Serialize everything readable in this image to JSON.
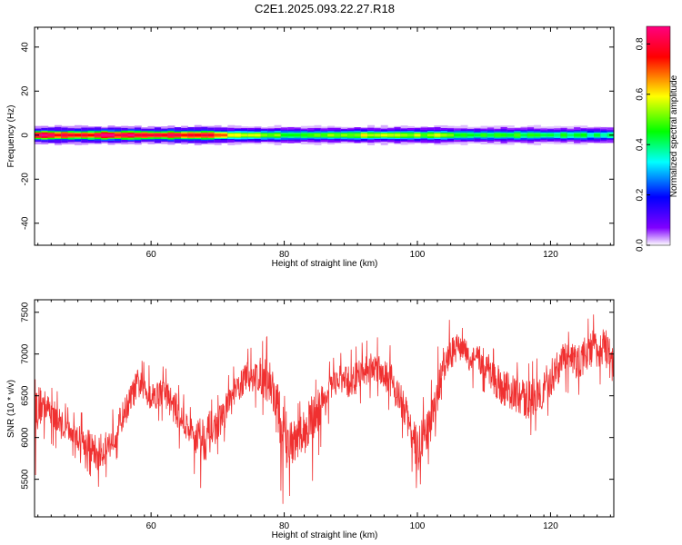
{
  "figure_title": "C2E1.2025.093.22.27.R18",
  "chart_data": [
    {
      "type": "heatmap",
      "title": "C2E1.2025.093.22.27.R18",
      "xlabel": "Height of straight line (km)",
      "ylabel": "Frequency (Hz)",
      "xlim": [
        42.5,
        129.5
      ],
      "ylim": [
        -50,
        49
      ],
      "xticks": [
        60,
        80,
        100,
        120
      ],
      "yticks": [
        -40,
        -20,
        0,
        20,
        40
      ],
      "xtick_labels": [
        "60",
        "80",
        "100",
        "120"
      ],
      "ytick_labels": [
        "-40",
        "-20",
        "0",
        "20",
        "40"
      ],
      "band_center_hz": 0,
      "band_halfwidth_hz": 4,
      "peak_amplitude_profile": {
        "x": [
          43,
          50,
          58,
          64,
          70,
          76,
          82,
          88,
          94,
          100,
          106,
          112,
          118,
          124,
          129
        ],
        "values": [
          0.85,
          0.82,
          0.86,
          0.84,
          0.7,
          0.55,
          0.45,
          0.52,
          0.58,
          0.55,
          0.5,
          0.46,
          0.44,
          0.42,
          0.4
        ]
      },
      "colorbar": {
        "label": "Normalized spectral amplitude",
        "range": [
          0.0,
          0.87
        ],
        "ticks": [
          0.0,
          0.2,
          0.4,
          0.6,
          0.8
        ],
        "tick_labels": [
          "0.0",
          "0.2",
          "0.4",
          "0.6",
          "0.8"
        ],
        "colors": [
          "#ffffff",
          "#8000ff",
          "#0000ff",
          "#00ffff",
          "#00ff00",
          "#ffff00",
          "#ff0000",
          "#ff0080"
        ]
      },
      "grid": false
    },
    {
      "type": "line",
      "xlabel": "Height of straight line (km)",
      "ylabel": "SNR (10 * v/v)",
      "xlim": [
        42.5,
        129.5
      ],
      "ylim": [
        5050,
        7650
      ],
      "xticks": [
        60,
        80,
        100,
        120
      ],
      "yticks": [
        5500,
        6000,
        6500,
        7000,
        7500
      ],
      "xtick_labels": [
        "60",
        "80",
        "100",
        "120"
      ],
      "ytick_labels": [
        "5500",
        "6000",
        "6500",
        "7000",
        "7500"
      ],
      "series": [
        {
          "color": "#f03030",
          "x": [
            42.5,
            44,
            46,
            48,
            50,
            52,
            54,
            56,
            58,
            60,
            62,
            64,
            66,
            68,
            70,
            72,
            74,
            76,
            78,
            80,
            82,
            84,
            86,
            88,
            90,
            92,
            94,
            96,
            98,
            100,
            102,
            104,
            106,
            108,
            110,
            112,
            114,
            116,
            118,
            120,
            122,
            124,
            126,
            128,
            129.5
          ],
          "values": [
            6350,
            6400,
            6200,
            6050,
            5950,
            5800,
            5950,
            6300,
            6650,
            6500,
            6550,
            6300,
            6050,
            6000,
            6150,
            6450,
            6700,
            6750,
            6650,
            6000,
            5950,
            6200,
            6450,
            6700,
            6650,
            6800,
            6850,
            6700,
            6350,
            5850,
            6150,
            6850,
            7100,
            6950,
            6900,
            6650,
            6550,
            6450,
            6500,
            6700,
            6950,
            6900,
            7050,
            7100,
            6850
          ],
          "envelope_high": [
            6700,
            6650,
            6550,
            6300,
            6300,
            6200,
            6300,
            6600,
            6950,
            6850,
            6850,
            6650,
            6350,
            6400,
            6500,
            6800,
            7050,
            7100,
            7250,
            6500,
            6400,
            6600,
            6850,
            7000,
            7050,
            7150,
            7200,
            7100,
            6700,
            6350,
            6650,
            7450,
            7350,
            7250,
            7200,
            7000,
            6950,
            6850,
            6950,
            7150,
            7250,
            7300,
            7450,
            7550,
            7300
          ],
          "envelope_low": [
            5500,
            6000,
            5850,
            5800,
            5650,
            5400,
            5600,
            5950,
            6300,
            6200,
            6200,
            5900,
            5650,
            5300,
            5800,
            6100,
            6400,
            6350,
            6150,
            5100,
            5600,
            5400,
            6050,
            6400,
            6300,
            6450,
            6500,
            6300,
            5950,
            5350,
            5750,
            6500,
            6800,
            6600,
            6550,
            6150,
            6200,
            5950,
            6100,
            6300,
            6550,
            6500,
            6600,
            6650,
            6450
          ]
        }
      ],
      "grid": false
    }
  ]
}
